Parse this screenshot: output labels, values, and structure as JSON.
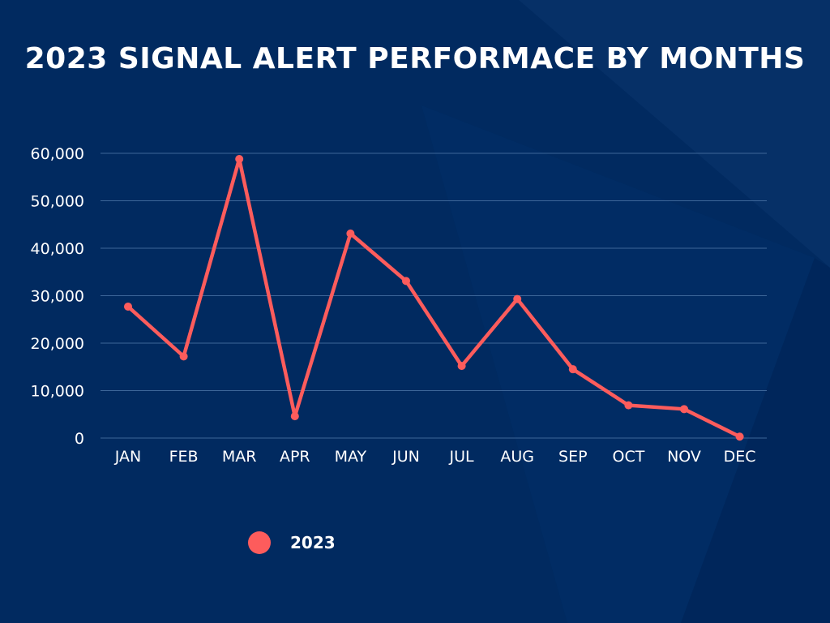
{
  "title": "2023 SIGNAL ALERT PERFORMACE BY MONTHS",
  "colors": {
    "background": "#012a60",
    "line": "#fd5c5c",
    "grid": "#3d6699",
    "text": "#ffffff"
  },
  "legend_placement": "bottom",
  "chart_data": {
    "type": "line",
    "title": "2023 SIGNAL ALERT PERFORMACE BY MONTHS",
    "xlabel": "",
    "ylabel": "",
    "categories": [
      "JAN",
      "FEB",
      "MAR",
      "APR",
      "MAY",
      "JUN",
      "JUL",
      "AUG",
      "SEP",
      "OCT",
      "NOV",
      "DEC"
    ],
    "series": [
      {
        "name": "2023",
        "values": [
          27700,
          17200,
          58800,
          4600,
          43100,
          33100,
          15200,
          29300,
          14500,
          6900,
          6100,
          300
        ]
      }
    ],
    "y_ticks": [
      0,
      10000,
      20000,
      30000,
      40000,
      50000,
      60000
    ],
    "y_tick_labels": [
      "0",
      "10,000",
      "20,000",
      "30,000",
      "40,000",
      "50,000",
      "60,000"
    ],
    "ylim": [
      0,
      60000
    ],
    "grid": true,
    "markers": true
  }
}
